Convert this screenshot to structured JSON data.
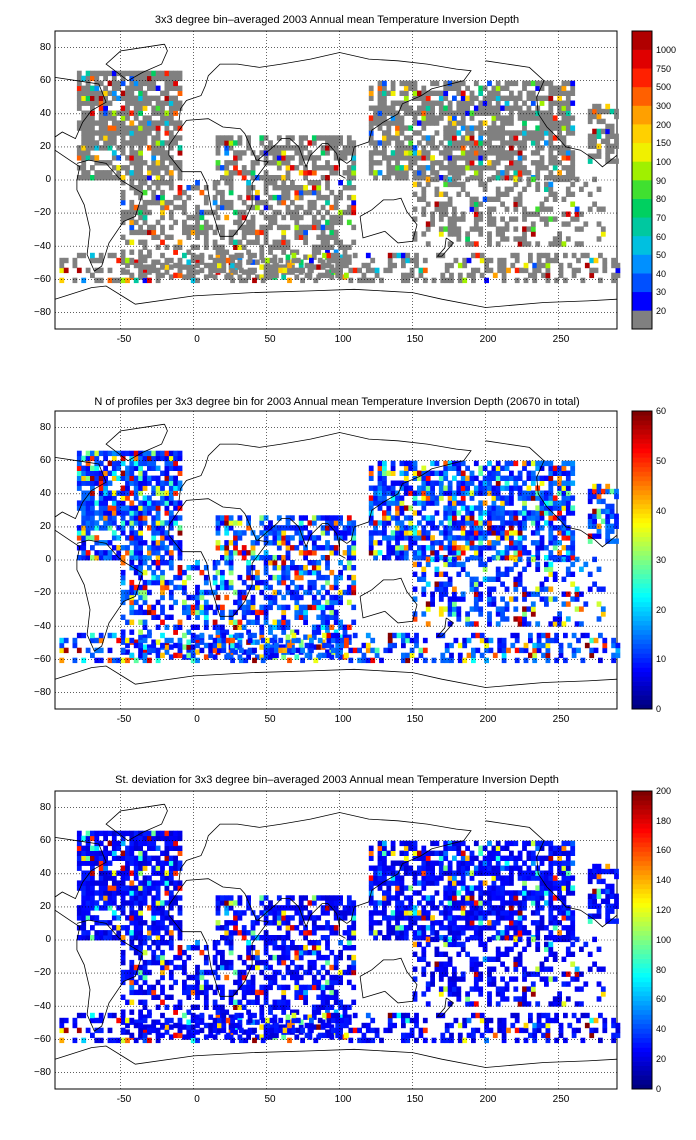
{
  "chart_data": [
    {
      "type": "heatmap",
      "title": "3x3 degree bin–averaged 2003 Annual mean Temperature Inversion Depth",
      "xlabel": "",
      "ylabel": "",
      "xlim": [
        -95,
        290
      ],
      "ylim": [
        -90,
        90
      ],
      "xticks": [
        "-50",
        "0",
        "50",
        "100",
        "150",
        "200",
        "250"
      ],
      "yticks": [
        "80",
        "60",
        "40",
        "20",
        "0",
        "−20",
        "−40",
        "−60",
        "−80"
      ],
      "grid": true,
      "colorbar": {
        "kind": "discrete",
        "labels": [
          "20",
          "30",
          "40",
          "50",
          "60",
          "70",
          "80",
          "90",
          "100",
          "150",
          "200",
          "300",
          "500",
          "750",
          "1000"
        ],
        "colors": [
          "#808080",
          "#0000ff",
          "#0050ff",
          "#0090ff",
          "#00c0e0",
          "#00c8a0",
          "#00d060",
          "#40e030",
          "#a0f000",
          "#f0f000",
          "#ffd000",
          "#ffa000",
          "#ff6000",
          "#ff2000",
          "#e00000",
          "#b00000"
        ]
      }
    },
    {
      "type": "heatmap",
      "title": "N of profiles per 3x3 degree bin for 2003 Annual mean Temperature Inversion Depth  (20670 in total)",
      "xlabel": "",
      "ylabel": "",
      "xlim": [
        -95,
        290
      ],
      "ylim": [
        -90,
        90
      ],
      "xticks": [
        "-50",
        "0",
        "50",
        "100",
        "150",
        "200",
        "250"
      ],
      "yticks": [
        "80",
        "60",
        "40",
        "20",
        "0",
        "−20",
        "−40",
        "−60",
        "−80"
      ],
      "grid": true,
      "colorbar": {
        "kind": "continuous",
        "min": 0,
        "max": 60,
        "ticks": [
          "0",
          "10",
          "20",
          "30",
          "40",
          "50",
          "60"
        ]
      }
    },
    {
      "type": "heatmap",
      "title": "St. deviation for 3x3 degree bin–averaged 2003 Annual mean Temperature Inversion Depth",
      "xlabel": "",
      "ylabel": "",
      "xlim": [
        -95,
        290
      ],
      "ylim": [
        -90,
        90
      ],
      "xticks": [
        "-50",
        "0",
        "50",
        "100",
        "150",
        "200",
        "250"
      ],
      "yticks": [
        "80",
        "60",
        "40",
        "20",
        "0",
        "−20",
        "−40",
        "−60",
        "−80"
      ],
      "grid": true,
      "colorbar": {
        "kind": "continuous",
        "min": 0,
        "max": 200,
        "ticks": [
          "0",
          "20",
          "40",
          "60",
          "80",
          "100",
          "120",
          "140",
          "160",
          "180",
          "200"
        ]
      }
    }
  ],
  "colors": {
    "no_data": "#ffffff",
    "low_bin": "#808080",
    "coastline": "#000000",
    "jet_low": "#00008f",
    "jet_high": "#800000"
  }
}
